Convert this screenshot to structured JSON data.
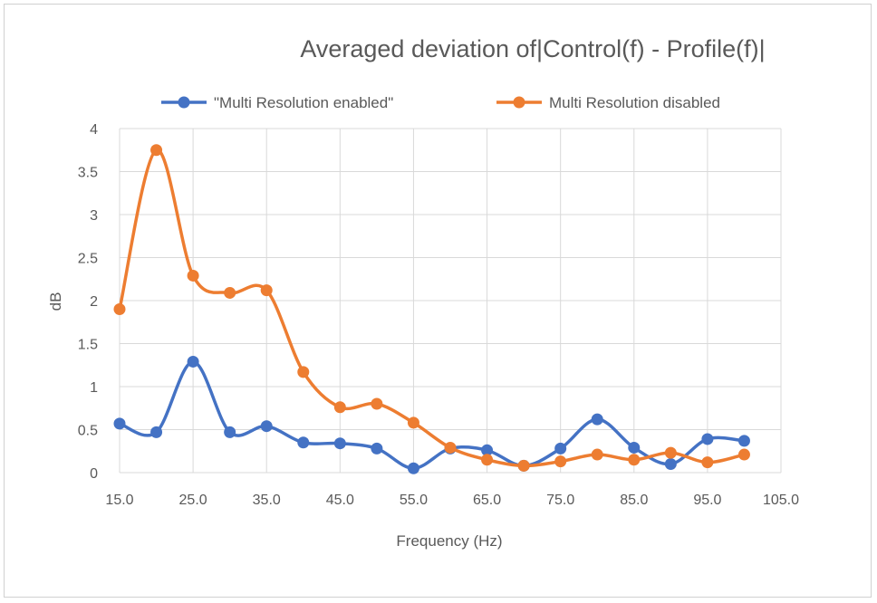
{
  "chart_data": {
    "type": "line",
    "title": "Averaged deviation of|Control(f) -  Profile(f)|",
    "xlabel": "Frequency (Hz)",
    "ylabel": "dB",
    "xlim": [
      15.0,
      105.0
    ],
    "ylim": [
      0,
      4
    ],
    "x_ticks": [
      "15.0",
      "25.0",
      "35.0",
      "45.0",
      "55.0",
      "65.0",
      "75.0",
      "85.0",
      "95.0",
      "105.0"
    ],
    "y_ticks": [
      "0",
      "0.5",
      "1",
      "1.5",
      "2",
      "2.5",
      "3",
      "3.5",
      "4"
    ],
    "grid": "vertical and horizontal",
    "legend_position": "top",
    "x": [
      15,
      20,
      25,
      30,
      35,
      40,
      45,
      50,
      55,
      60,
      65,
      70,
      75,
      80,
      85,
      90,
      95,
      100
    ],
    "series": [
      {
        "name": "\"Multi Resolution enabled\"",
        "color": "#4472C4",
        "values": [
          0.57,
          0.47,
          1.29,
          0.47,
          0.54,
          0.35,
          0.34,
          0.28,
          0.05,
          0.28,
          0.26,
          0.08,
          0.28,
          0.62,
          0.29,
          0.1,
          0.39,
          0.37
        ]
      },
      {
        "name": "Multi Resolution disabled",
        "color": "#ED7D31",
        "values": [
          1.9,
          3.75,
          2.29,
          2.09,
          2.12,
          1.17,
          0.76,
          0.8,
          0.58,
          0.29,
          0.15,
          0.08,
          0.13,
          0.21,
          0.15,
          0.23,
          0.12,
          0.21
        ]
      }
    ]
  }
}
